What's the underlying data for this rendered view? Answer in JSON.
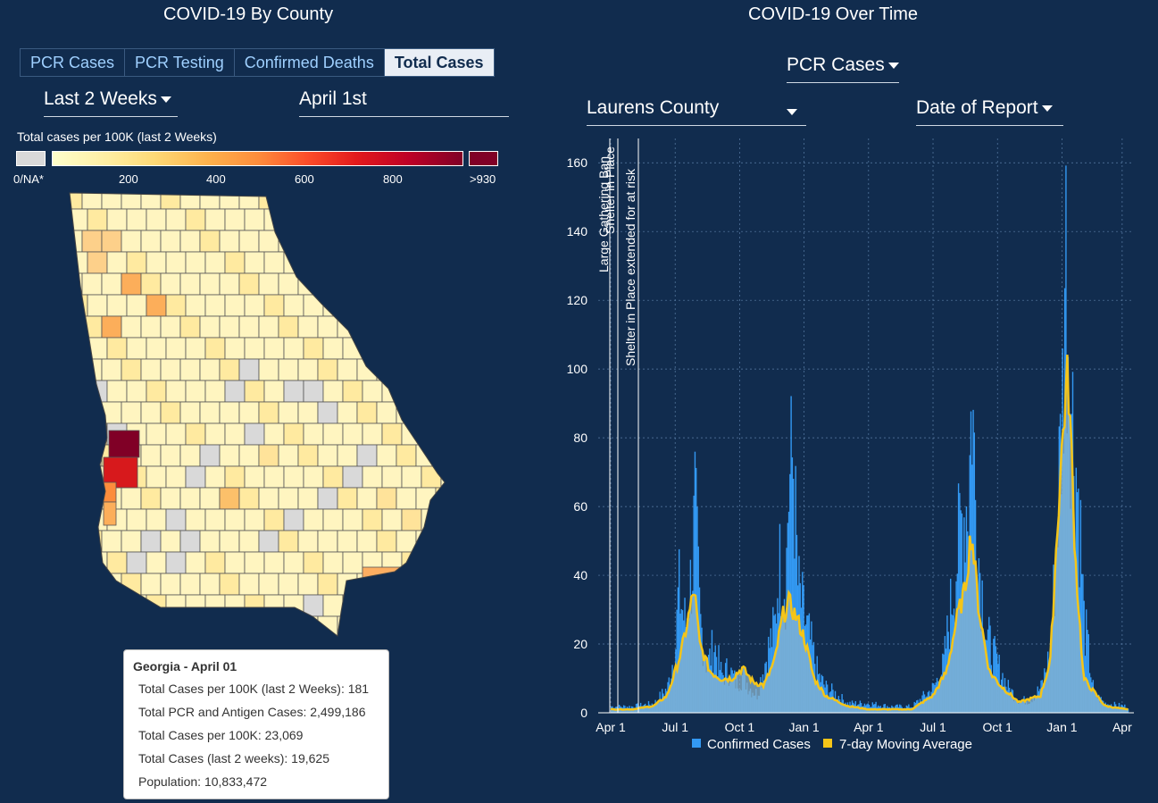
{
  "left": {
    "title": "COVID-19 By County",
    "tabs": [
      "PCR Cases",
      "PCR Testing",
      "Confirmed Deaths",
      "Total Cases"
    ],
    "active_tab": "Total Cases",
    "period_dropdown": "Last 2 Weeks",
    "date_value": "April 1st",
    "legend": {
      "title": "Total cases per 100K (last 2 Weeks)",
      "na_label": "0/NA*",
      "ticks": [
        "200",
        "400",
        "600",
        "800"
      ],
      "max_label": ">930",
      "na_color": "#d9d9d9",
      "max_color": "#800026"
    },
    "tooltip": {
      "header": "Georgia - April 01",
      "rows": [
        "Total Cases per 100K (last 2 Weeks): 181",
        "Total PCR and Antigen Cases: 2,499,186",
        "Total Cases per 100K: 23,069",
        "Total Cases (last 2 weeks): 19,625",
        "Population: 10,833,472"
      ]
    }
  },
  "right": {
    "title": "COVID-19 Over Time",
    "metric_dropdown": "PCR Cases",
    "county_dropdown": "Laurens County",
    "date_type_dropdown": "Date of Report",
    "colors": {
      "bars": "#3399f3",
      "average": "#f5c518",
      "area": "#8ab4cf"
    }
  },
  "chart_data": {
    "type": "bar",
    "title": "",
    "x_ticks": [
      "Apr 1",
      "Jul 1",
      "Oct 1",
      "Jan 1",
      "Apr 1",
      "Jul 1",
      "Oct 1",
      "Jan 1",
      "Apr"
    ],
    "y_ticks": [
      0,
      20,
      40,
      60,
      80,
      100,
      120,
      140,
      160
    ],
    "ylim": [
      0,
      165
    ],
    "annotations": [
      "Large Gathering Ban",
      "Shelter in Place",
      "Shelter in Place extended for at risk"
    ],
    "series": [
      {
        "name": "Confirmed Cases",
        "points": [
          [
            "Apr 1",
            2
          ],
          [
            "May 1",
            2
          ],
          [
            "Jun 1",
            3
          ],
          [
            "Jun 20",
            8
          ],
          [
            "Jul 1",
            22
          ],
          [
            "Jul 5",
            40
          ],
          [
            "Jul 15",
            28
          ],
          [
            "Jul 25",
            48
          ],
          [
            "Jul 28",
            67
          ],
          [
            "Aug 5",
            30
          ],
          [
            "Aug 15",
            15
          ],
          [
            "Aug 25",
            22
          ],
          [
            "Sep 5",
            12
          ],
          [
            "Sep 15",
            14
          ],
          [
            "Sep 25",
            10
          ],
          [
            "Oct 5",
            12
          ],
          [
            "Oct 15",
            8
          ],
          [
            "Oct 25",
            6
          ],
          [
            "Nov 1",
            12
          ],
          [
            "Nov 10",
            20
          ],
          [
            "Nov 20",
            28
          ],
          [
            "Nov 25",
            48
          ],
          [
            "Dec 5",
            42
          ],
          [
            "Dec 8",
            70
          ],
          [
            "Dec 15",
            83
          ],
          [
            "Dec 22",
            40
          ],
          [
            "Jan 1",
            30
          ],
          [
            "Jan 10",
            22
          ],
          [
            "Jan 20",
            12
          ],
          [
            "Feb 1",
            8
          ],
          [
            "Feb 15",
            6
          ],
          [
            "Mar 1",
            3
          ],
          [
            "Apr 1",
            3
          ],
          [
            "May 1",
            2
          ],
          [
            "Jun 1",
            2
          ],
          [
            "Jul 1",
            8
          ],
          [
            "Jul 15",
            15
          ],
          [
            "Aug 1",
            45
          ],
          [
            "Aug 10",
            62
          ],
          [
            "Aug 20",
            70
          ],
          [
            "Aug 25",
            103
          ],
          [
            "Sep 1",
            58
          ],
          [
            "Sep 15",
            25
          ],
          [
            "Oct 1",
            15
          ],
          [
            "Oct 15",
            8
          ],
          [
            "Nov 1",
            4
          ],
          [
            "Nov 15",
            4
          ],
          [
            "Dec 1",
            8
          ],
          [
            "Dec 15",
            20
          ],
          [
            "Dec 25",
            68
          ],
          [
            "Jan 1",
            100
          ],
          [
            "Jan 5",
            153
          ],
          [
            "Jan 10",
            118
          ],
          [
            "Jan 15",
            95
          ],
          [
            "Jan 25",
            65
          ],
          [
            "Feb 1",
            30
          ],
          [
            "Feb 15",
            6
          ],
          [
            "Mar 1",
            3
          ],
          [
            "Apr 1",
            2
          ]
        ]
      },
      {
        "name": "7-day Moving Average",
        "points": [
          [
            "Apr 1",
            1
          ],
          [
            "May 1",
            1
          ],
          [
            "Jun 1",
            2
          ],
          [
            "Jun 20",
            5
          ],
          [
            "Jul 1",
            12
          ],
          [
            "Jul 10",
            18
          ],
          [
            "Jul 20",
            28
          ],
          [
            "Jul 28",
            36
          ],
          [
            "Aug 5",
            20
          ],
          [
            "Aug 20",
            12
          ],
          [
            "Sep 5",
            10
          ],
          [
            "Sep 20",
            10
          ],
          [
            "Oct 5",
            13
          ],
          [
            "Oct 20",
            9
          ],
          [
            "Nov 5",
            8
          ],
          [
            "Nov 20",
            15
          ],
          [
            "Dec 1",
            28
          ],
          [
            "Dec 10",
            32
          ],
          [
            "Dec 20",
            28
          ],
          [
            "Jan 1",
            22
          ],
          [
            "Jan 15",
            10
          ],
          [
            "Feb 1",
            5
          ],
          [
            "Mar 1",
            2
          ],
          [
            "Apr 1",
            1
          ],
          [
            "Jun 1",
            1
          ],
          [
            "Jul 1",
            5
          ],
          [
            "Jul 20",
            12
          ],
          [
            "Aug 5",
            28
          ],
          [
            "Aug 15",
            35
          ],
          [
            "Aug 25",
            53
          ],
          [
            "Sep 5",
            30
          ],
          [
            "Sep 20",
            12
          ],
          [
            "Oct 5",
            8
          ],
          [
            "Nov 1",
            3
          ],
          [
            "Dec 1",
            5
          ],
          [
            "Dec 15",
            15
          ],
          [
            "Dec 25",
            55
          ],
          [
            "Jan 5",
            90
          ],
          [
            "Jan 10",
            98
          ],
          [
            "Jan 20",
            45
          ],
          [
            "Feb 1",
            10
          ],
          [
            "Mar 1",
            2
          ],
          [
            "Apr 1",
            1
          ]
        ]
      }
    ],
    "legend": [
      "Confirmed Cases",
      "7-day Moving Average"
    ],
    "legend_position": "bottom",
    "grid": true
  }
}
